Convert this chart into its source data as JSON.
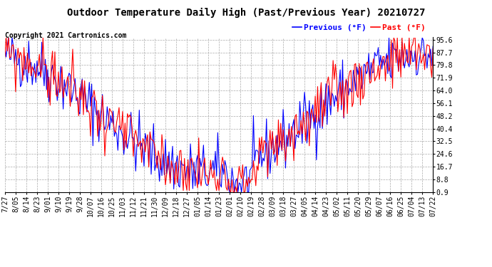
{
  "title": "Outdoor Temperature Daily High (Past/Previous Year) 20210727",
  "copyright_text": "Copyright 2021 Cartronics.com",
  "legend_previous": "Previous (°F)",
  "legend_past": "Past (°F)",
  "color_previous": "#0000ff",
  "color_past": "#ff0000",
  "background_color": "#ffffff",
  "plot_bg_color": "#ffffff",
  "yticks": [
    0.9,
    8.8,
    16.7,
    24.6,
    32.5,
    40.4,
    48.2,
    56.1,
    64.0,
    71.9,
    79.8,
    87.7,
    95.6
  ],
  "xtick_labels": [
    "7/27",
    "8/05",
    "8/14",
    "8/23",
    "9/01",
    "9/10",
    "9/19",
    "9/28",
    "10/07",
    "10/16",
    "10/25",
    "11/03",
    "11/12",
    "11/21",
    "11/30",
    "12/09",
    "12/18",
    "12/27",
    "01/05",
    "01/14",
    "01/23",
    "02/01",
    "02/10",
    "02/19",
    "02/28",
    "03/09",
    "03/18",
    "03/27",
    "04/05",
    "04/14",
    "04/23",
    "05/02",
    "05/11",
    "05/20",
    "05/29",
    "06/07",
    "06/16",
    "06/25",
    "07/04",
    "07/13",
    "07/22"
  ],
  "ylim_min": 0.9,
  "ylim_max": 97.0,
  "grid_color": "#aaaaaa",
  "grid_style": "--",
  "title_fontsize": 10,
  "copyright_fontsize": 7,
  "axis_fontsize": 7,
  "line_width": 0.8
}
